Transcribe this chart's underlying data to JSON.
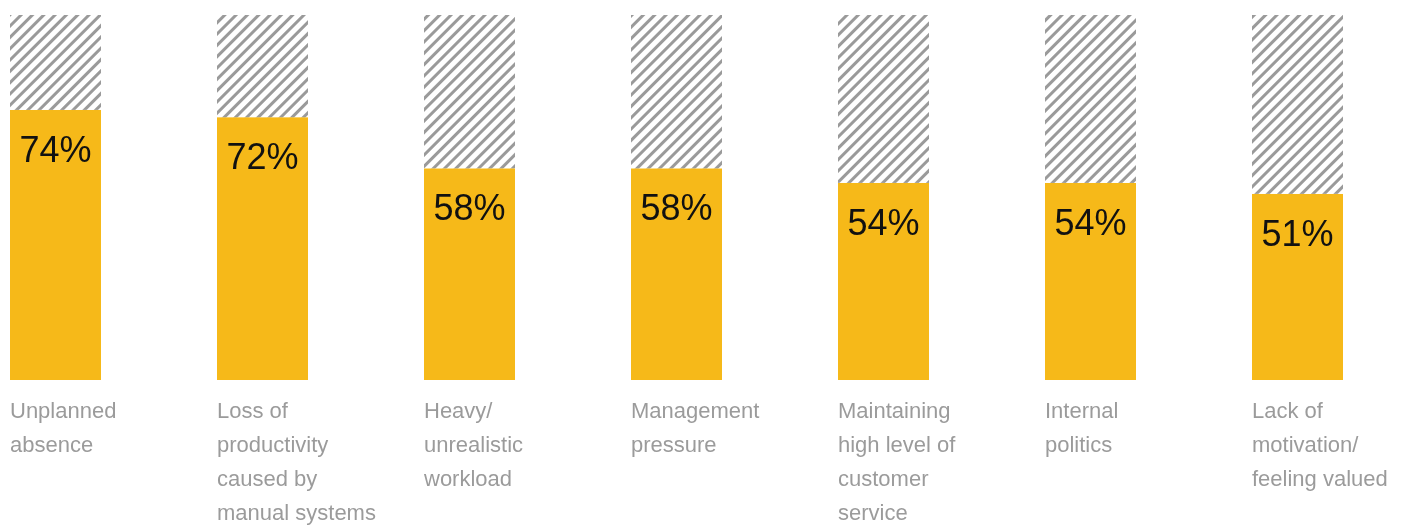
{
  "chart_data": {
    "type": "bar",
    "stacked": true,
    "categories": [
      "Unplanned absence",
      "Loss of productivity caused by manual systems",
      "Heavy/unrealistic workload",
      "Management pressure",
      "Maintaining high level of customer service",
      "Internal politics",
      "Lack of motivation/feeling valued"
    ],
    "series": [
      {
        "color": "#f6b919",
        "values": [
          74,
          72,
          58,
          58,
          54,
          54,
          51
        ],
        "value_labels": [
          "74%",
          "72%",
          "58%",
          "58%",
          "54%",
          "54%",
          "51%"
        ]
      },
      {
        "color": "#9a9a9a",
        "values": [
          26,
          28,
          42,
          42,
          46,
          46,
          49
        ]
      }
    ],
    "ylim": [
      0,
      100
    ]
  }
}
